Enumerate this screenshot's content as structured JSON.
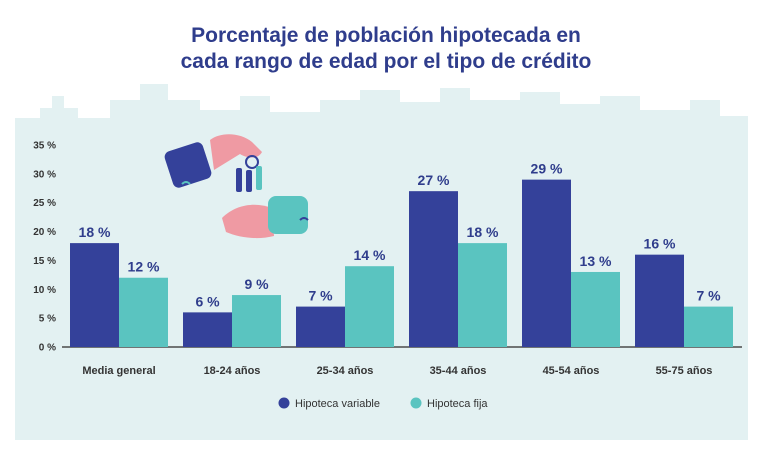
{
  "colors": {
    "variable": "#34419a",
    "fija": "#5ac4c0",
    "title": "#2f3d8c",
    "background_band": "#e3f1f2"
  },
  "chart_data": {
    "type": "bar",
    "title": [
      "Porcentaje de población hipotecada en",
      "cada rango de edad por el tipo de crédito"
    ],
    "categories": [
      "Media general",
      "18-24 años",
      "25-34 años",
      "35-44 años",
      "45-54 años",
      "55-75 años"
    ],
    "series": [
      {
        "name": "Hipoteca variable",
        "values": [
          18,
          6,
          7,
          27,
          29,
          16
        ],
        "labels": [
          "18 %",
          "6 %",
          "7 %",
          "27 %",
          "29 %",
          "16 %"
        ]
      },
      {
        "name": "Hipoteca fija",
        "values": [
          12,
          9,
          14,
          18,
          13,
          7
        ],
        "labels": [
          "12 %",
          "9 %",
          "14 %",
          "18 %",
          "13 %",
          "7 %"
        ]
      }
    ],
    "ylim": [
      0,
      35
    ],
    "yticks": [
      "0 %",
      "5 %",
      "10 %",
      "15 %",
      "20 %",
      "25 %",
      "30 %",
      "35 %"
    ],
    "ytick_values": [
      0,
      5,
      10,
      15,
      20,
      25,
      30,
      35
    ],
    "xlabel": "",
    "ylabel": "",
    "grid": false,
    "legend": "bottom-center"
  }
}
